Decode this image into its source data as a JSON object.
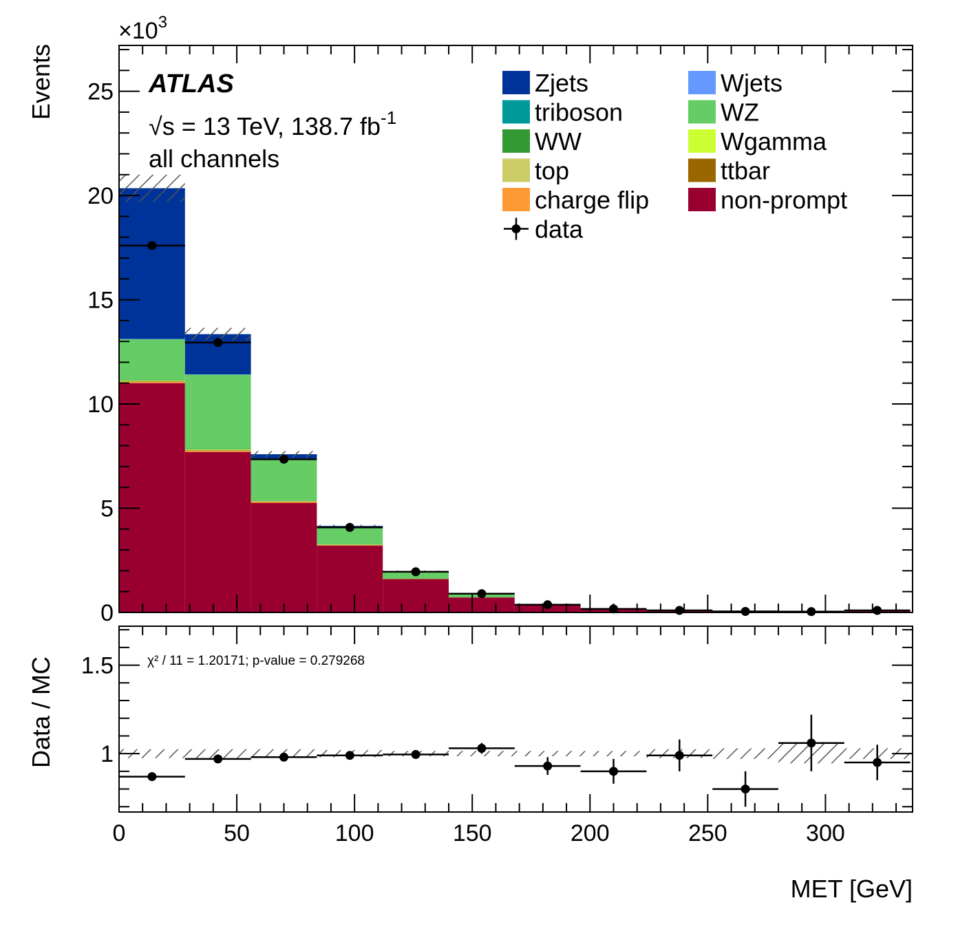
{
  "chart_data": {
    "type": "bar",
    "subtype": "stacked-histogram-with-ratio",
    "atlas_label": "ATLAS",
    "energy_text": "√s = 13 TeV, 138.7 fb",
    "energy_sup": "-1",
    "channel_text": "all channels",
    "xlabel": "MET [GeV]",
    "ylabel": "Events",
    "ratio_ylabel": "Data / MC",
    "y_multiplier_base": "×10",
    "y_multiplier_exp": "3",
    "xlim": [
      0,
      337
    ],
    "ylim": [
      0,
      27.2
    ],
    "ratio_ylim": [
      0.67,
      1.72
    ],
    "x_ticks": [
      0,
      50,
      100,
      150,
      200,
      250,
      300
    ],
    "y_ticks": [
      0,
      5,
      10,
      15,
      20,
      25
    ],
    "ratio_y_ticks": [
      1,
      1.5
    ],
    "ratio_y_tick_labels": [
      "1",
      "1.5"
    ],
    "bin_edges": [
      0,
      28,
      56,
      84,
      112,
      140,
      168,
      196,
      224,
      252,
      280,
      308,
      336
    ],
    "stack_order_bottom_to_top": [
      "non-prompt",
      "charge flip",
      "ttbar",
      "top",
      "Wgamma",
      "WW",
      "WZ",
      "triboson",
      "Wjets",
      "Zjets"
    ],
    "series": [
      {
        "name": "non-prompt",
        "color": "#990030",
        "values": [
          11.0,
          7.7,
          5.25,
          3.2,
          1.6,
          0.72,
          0.34,
          0.18,
          0.1,
          0.06,
          0.04,
          0.08
        ]
      },
      {
        "name": "charge flip",
        "color": "#ff9933",
        "values": [
          0.05,
          0.05,
          0.04,
          0.02,
          0.01,
          0.0,
          0.0,
          0.0,
          0.0,
          0.0,
          0.0,
          0.0
        ]
      },
      {
        "name": "ttbar",
        "color": "#996600",
        "values": [
          0.03,
          0.03,
          0.03,
          0.02,
          0.01,
          0.0,
          0.0,
          0.0,
          0.0,
          0.0,
          0.0,
          0.0
        ]
      },
      {
        "name": "top",
        "color": "#cccc66",
        "values": [
          0.02,
          0.02,
          0.02,
          0.01,
          0.0,
          0.0,
          0.0,
          0.0,
          0.0,
          0.0,
          0.0,
          0.0
        ]
      },
      {
        "name": "Wgamma",
        "color": "#ccff33",
        "values": [
          0.02,
          0.02,
          0.01,
          0.01,
          0.0,
          0.0,
          0.0,
          0.0,
          0.0,
          0.0,
          0.0,
          0.0
        ]
      },
      {
        "name": "WW",
        "color": "#339933",
        "values": [
          0.02,
          0.02,
          0.02,
          0.01,
          0.0,
          0.0,
          0.0,
          0.0,
          0.0,
          0.0,
          0.0,
          0.0
        ]
      },
      {
        "name": "WZ",
        "color": "#66cc66",
        "values": [
          1.96,
          3.56,
          2.0,
          0.8,
          0.33,
          0.16,
          0.06,
          0.02,
          0.0,
          0.0,
          0.0,
          0.0
        ]
      },
      {
        "name": "triboson",
        "color": "#009999",
        "values": [
          0.01,
          0.01,
          0.01,
          0.01,
          0.0,
          0.0,
          0.0,
          0.0,
          0.0,
          0.0,
          0.0,
          0.0
        ]
      },
      {
        "name": "Wjets",
        "color": "#6699ff",
        "values": [
          0.01,
          0.01,
          0.01,
          0.01,
          0.0,
          0.0,
          0.0,
          0.0,
          0.0,
          0.0,
          0.0,
          0.0
        ]
      },
      {
        "name": "Zjets",
        "color": "#003399",
        "values": [
          7.23,
          1.93,
          0.2,
          0.06,
          0.03,
          0.02,
          0.01,
          0.0,
          0.0,
          0.0,
          0.0,
          0.0
        ]
      }
    ],
    "mc_uncertainty": [
      0.65,
      0.3,
      0.15,
      0.05,
      0.03,
      0.02,
      0.01,
      0.01,
      0.01,
      0.01,
      0.01,
      0.01
    ],
    "data": {
      "name": "data",
      "x": [
        14,
        42,
        70,
        98,
        126,
        154,
        182,
        210,
        238,
        266,
        294,
        322
      ],
      "values": [
        17.6,
        12.95,
        7.35,
        4.08,
        1.95,
        0.9,
        0.37,
        0.17,
        0.1,
        0.05,
        0.04,
        0.1
      ],
      "errors": [
        0.13,
        0.11,
        0.09,
        0.06,
        0.04,
        0.03,
        0.02,
        0.013,
        0.01,
        0.007,
        0.006,
        0.01
      ]
    },
    "ratio": {
      "values": [
        0.87,
        0.97,
        0.98,
        0.99,
        0.995,
        1.03,
        0.93,
        0.9,
        0.99,
        0.8,
        1.06,
        0.95
      ],
      "errors": [
        0.01,
        0.01,
        0.01,
        0.015,
        0.02,
        0.03,
        0.05,
        0.07,
        0.09,
        0.1,
        0.16,
        0.1
      ],
      "band_half_width": [
        0.025,
        0.025,
        0.025,
        0.02,
        0.015,
        0.015,
        0.015,
        0.015,
        0.025,
        0.03,
        0.055,
        0.03
      ]
    },
    "ratio_annotation": "χ² / 11 = 1.20171; p-value = 0.279268",
    "legend": {
      "placement": "top-right",
      "columns": [
        [
          "Zjets",
          "triboson",
          "WW",
          "top",
          "charge flip",
          "data"
        ],
        [
          "Wjets",
          "WZ",
          "Wgamma",
          "ttbar",
          "non-prompt"
        ]
      ],
      "colors": {
        "Zjets": "#003399",
        "Wjets": "#6699ff",
        "triboson": "#009999",
        "WZ": "#66cc66",
        "WW": "#339933",
        "Wgamma": "#ccff33",
        "top": "#cccc66",
        "ttbar": "#996600",
        "charge flip": "#ff9933",
        "non-prompt": "#990030"
      }
    }
  }
}
